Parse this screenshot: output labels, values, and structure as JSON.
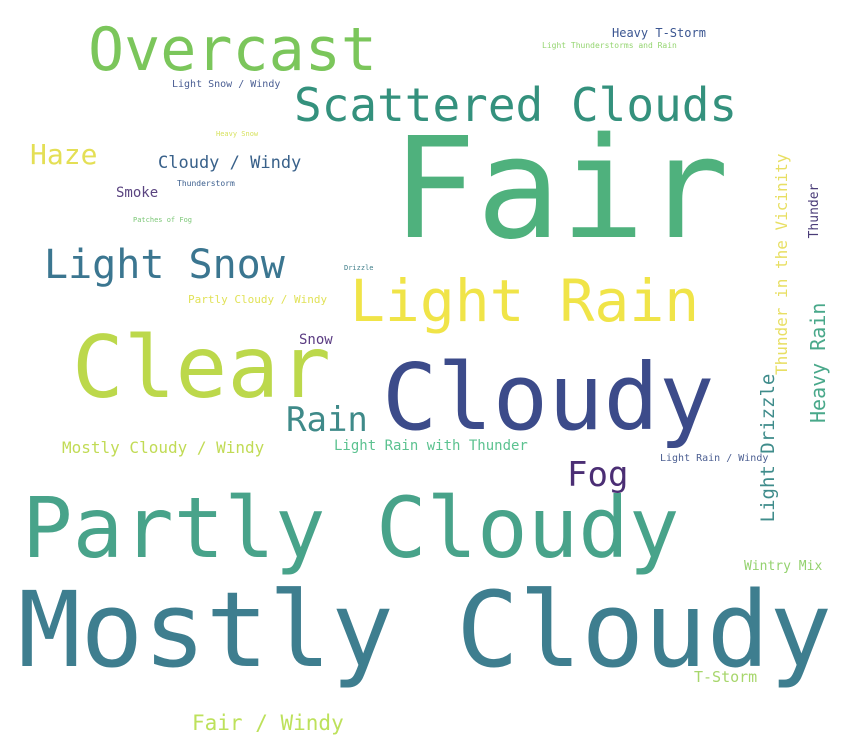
{
  "words": [
    {
      "id": "fair",
      "text": "Fair",
      "color": "#4fb17d"
    },
    {
      "id": "mostly-cloudy",
      "text": "Mostly Cloudy",
      "color": "#3e7e8f"
    },
    {
      "id": "partly-cloudy",
      "text": "Partly Cloudy",
      "color": "#48a38a"
    },
    {
      "id": "cloudy",
      "text": "Cloudy",
      "color": "#3c4b8a"
    },
    {
      "id": "clear",
      "text": "Clear",
      "color": "#bcd84b"
    },
    {
      "id": "overcast",
      "text": "Overcast",
      "color": "#7bc65b"
    },
    {
      "id": "scattered-clouds",
      "text": "Scattered Clouds",
      "color": "#34917d"
    },
    {
      "id": "light-rain",
      "text": "Light Rain",
      "color": "#f0e448"
    },
    {
      "id": "light-snow",
      "text": "Light Snow",
      "color": "#3b7690"
    },
    {
      "id": "rain",
      "text": "Rain",
      "color": "#3f8a89"
    },
    {
      "id": "fog",
      "text": "Fog",
      "color": "#4b2e74"
    },
    {
      "id": "haze",
      "text": "Haze",
      "color": "#e4df55"
    },
    {
      "id": "cloudy-windy",
      "text": "Cloudy / Windy",
      "color": "#39618a"
    },
    {
      "id": "smoke",
      "text": "Smoke",
      "color": "#5a4480"
    },
    {
      "id": "snow",
      "text": "Snow",
      "color": "#5a3b82"
    },
    {
      "id": "mostly-cloudy-windy",
      "text": "Mostly Cloudy / Windy",
      "color": "#c1db55"
    },
    {
      "id": "light-rain-with-thunder",
      "text": "Light Rain with Thunder",
      "color": "#5cc290"
    },
    {
      "id": "light-rain-windy",
      "text": "Light Rain / Windy",
      "color": "#4c5f92"
    },
    {
      "id": "fair-windy",
      "text": "Fair / Windy",
      "color": "#bde15b"
    },
    {
      "id": "t-storm",
      "text": "T-Storm",
      "color": "#a7d66c"
    },
    {
      "id": "wintry-mix",
      "text": "Wintry Mix",
      "color": "#94d26f"
    },
    {
      "id": "heavy-t-storm",
      "text": "Heavy T-Storm",
      "color": "#3b5691"
    },
    {
      "id": "light-thunderstorms-and-rain",
      "text": "Light Thunderstorms and Rain",
      "color": "#95d571"
    },
    {
      "id": "light-snow-windy",
      "text": "Light Snow / Windy",
      "color": "#4a5e93"
    },
    {
      "id": "heavy-snow",
      "text": "Heavy Snow",
      "color": "#d7e25f"
    },
    {
      "id": "thunderstorm",
      "text": "Thunderstorm",
      "color": "#3c5f8e"
    },
    {
      "id": "patches-of-fog",
      "text": "Patches of Fog",
      "color": "#7bc776"
    },
    {
      "id": "drizzle",
      "text": "Drizzle",
      "color": "#43808c"
    },
    {
      "id": "partly-cloudy-windy",
      "text": "Partly Cloudy / Windy",
      "color": "#e1e258"
    },
    {
      "id": "thunder-in-the-vicinity",
      "text": "Thunder in the Vicinity",
      "color": "#e8df63"
    },
    {
      "id": "thunder",
      "text": "Thunder",
      "color": "#4a3c78"
    },
    {
      "id": "heavy-rain",
      "text": "Heavy Rain",
      "color": "#49a88a"
    },
    {
      "id": "light-drizzle",
      "text": "Light Drizzle",
      "color": "#3f8c8b"
    }
  ]
}
